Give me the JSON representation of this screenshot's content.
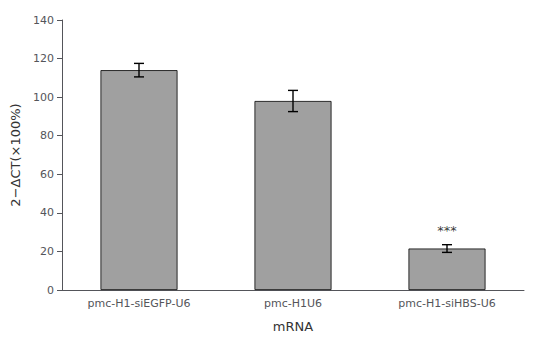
{
  "chart_data": {
    "type": "bar",
    "categories": [
      "pmc-H1-siEGFP-U6",
      "pmc-H1U6",
      "pmc-H1-siHBS-U6"
    ],
    "values": [
      114.0,
      98.0,
      21.5
    ],
    "errors": [
      3.5,
      5.5,
      2.0
    ],
    "color": "#a0a0a0",
    "xlabel": "mRNA",
    "ylabel": "2−ΔCT(×100%)",
    "ylim": [
      0,
      140
    ],
    "yticks": [
      0,
      20,
      40,
      60,
      80,
      100,
      120,
      140
    ],
    "grid": false,
    "annotations": [
      {
        "text": "***",
        "category": "pmc-H1-siHBS-U6"
      }
    ]
  }
}
